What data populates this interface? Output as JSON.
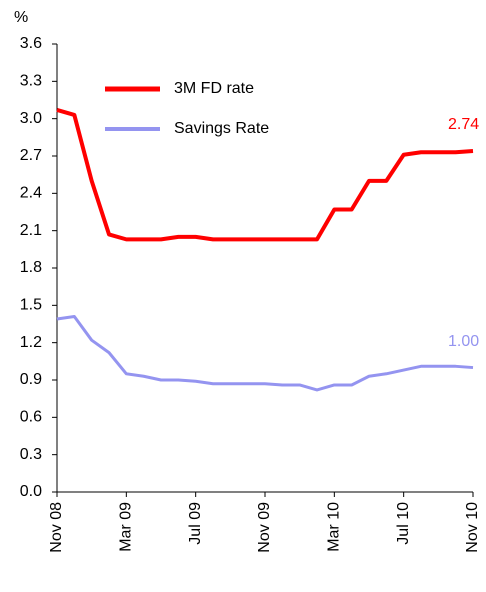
{
  "chart_data": {
    "type": "line",
    "y_label": "%",
    "categories": [
      "Nov 08",
      null,
      null,
      null,
      "Mar 09",
      null,
      null,
      null,
      "Jul 09",
      null,
      null,
      null,
      "Nov 09",
      null,
      null,
      null,
      "Mar 10",
      null,
      null,
      null,
      "Jul 10",
      null,
      null,
      null,
      "Nov 10"
    ],
    "series": [
      {
        "name": "3M FD rate",
        "color": "#ff0000",
        "values": [
          3.07,
          3.03,
          2.5,
          2.07,
          2.03,
          2.03,
          2.03,
          2.05,
          2.05,
          2.03,
          2.03,
          2.03,
          2.03,
          2.03,
          2.03,
          2.03,
          2.27,
          2.27,
          2.5,
          2.5,
          2.71,
          2.73,
          2.73,
          2.73,
          2.74
        ],
        "value_labels": [
          null,
          null,
          null,
          null,
          null,
          null,
          null,
          null,
          null,
          null,
          null,
          null,
          null,
          null,
          null,
          null,
          null,
          null,
          null,
          null,
          null,
          null,
          null,
          null,
          "2.74"
        ]
      },
      {
        "name": "Savings Rate",
        "color": "#9494f0",
        "values": [
          1.39,
          1.41,
          1.22,
          1.12,
          0.95,
          0.93,
          0.9,
          0.9,
          0.89,
          0.87,
          0.87,
          0.87,
          0.87,
          0.86,
          0.86,
          0.82,
          0.86,
          0.86,
          0.93,
          0.95,
          0.98,
          1.01,
          1.01,
          1.01,
          1.0
        ],
        "value_labels": [
          null,
          null,
          null,
          null,
          null,
          null,
          null,
          null,
          null,
          null,
          null,
          null,
          null,
          null,
          null,
          null,
          null,
          null,
          null,
          null,
          null,
          null,
          null,
          null,
          "1.00"
        ]
      }
    ],
    "ylim": [
      0,
      3.6
    ],
    "yticks": [
      {
        "value": 0,
        "label": "0.0"
      },
      0.3,
      0.6,
      0.9,
      1.2,
      1.5,
      1.8,
      2.1,
      2.4,
      2.7,
      {
        "value": 3,
        "label": "3.0"
      },
      3.3,
      {
        "value": 3.6,
        "label": "3.6"
      }
    ],
    "legend": "upper left",
    "grid": false
  }
}
